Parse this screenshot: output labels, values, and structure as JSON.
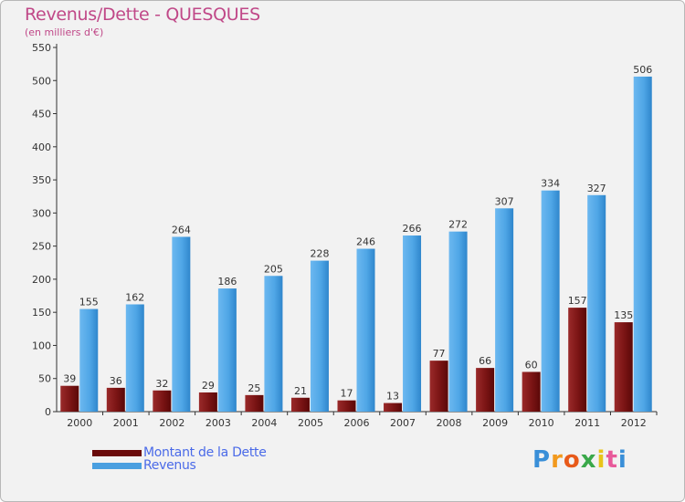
{
  "title": "Revenus/Dette - QUESQUES",
  "subtitle": "(en milliers d'€)",
  "colors": {
    "title": "#c04888",
    "dette": "#7a1414",
    "revenus": "#4a9fe0",
    "legend_text": "#4a6ae8"
  },
  "legend": [
    {
      "label": "Montant de la Dette",
      "color": "#6a0a0a"
    },
    {
      "label": "Revenus",
      "color": "#4a9fe0"
    }
  ],
  "logo": {
    "text": "Proxiti"
  },
  "chart_data": {
    "type": "bar",
    "title": "Revenus/Dette - QUESQUES",
    "subtitle": "(en milliers d'€)",
    "xlabel": "",
    "ylabel": "",
    "ylim": [
      0,
      550
    ],
    "yticks": [
      0,
      50,
      100,
      150,
      200,
      250,
      300,
      350,
      400,
      450,
      500,
      550
    ],
    "grid": false,
    "categories": [
      "2000",
      "2001",
      "2002",
      "2003",
      "2004",
      "2005",
      "2006",
      "2007",
      "2008",
      "2009",
      "2010",
      "2011",
      "2012"
    ],
    "series": [
      {
        "name": "Montant de la Dette",
        "values": [
          39,
          36,
          32,
          29,
          25,
          21,
          17,
          13,
          77,
          66,
          60,
          157,
          135
        ]
      },
      {
        "name": "Revenus",
        "values": [
          155,
          162,
          264,
          186,
          205,
          228,
          246,
          266,
          272,
          307,
          334,
          327,
          506
        ]
      }
    ]
  }
}
